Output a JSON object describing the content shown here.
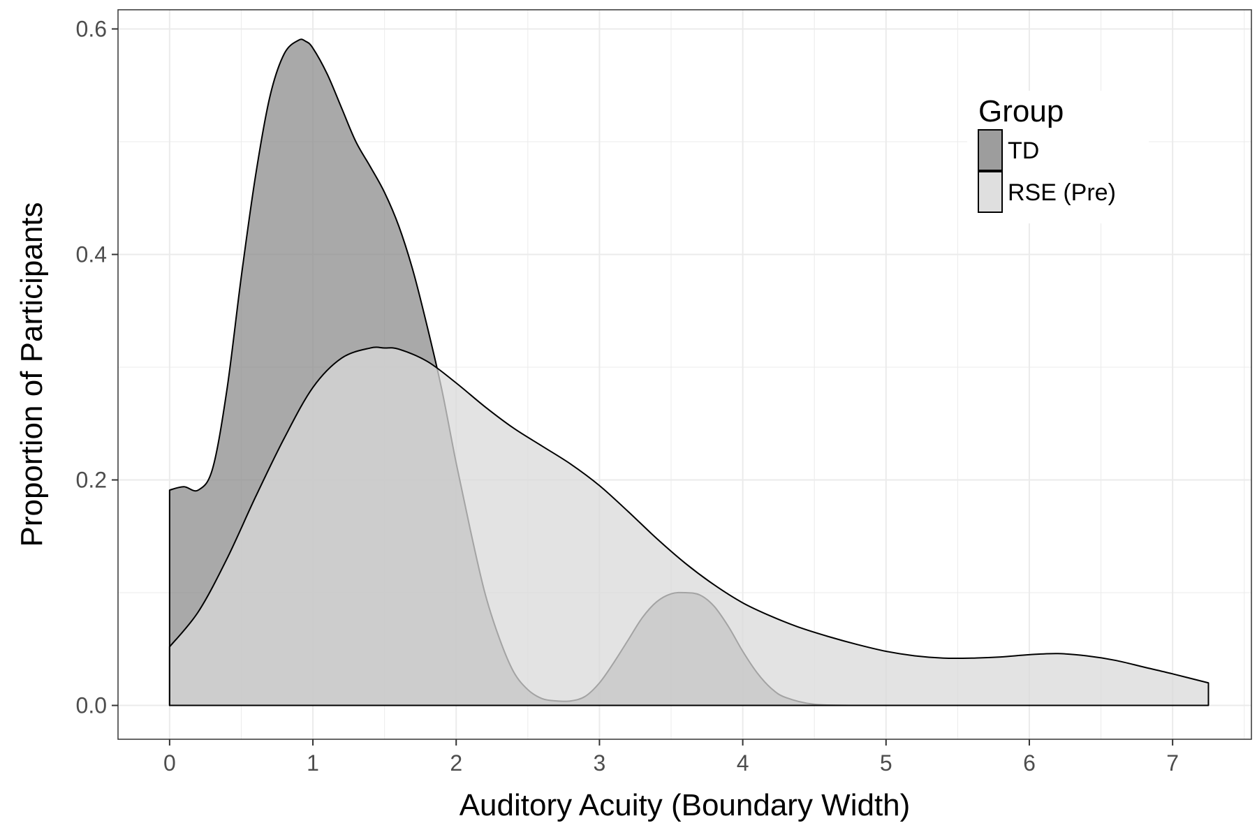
{
  "chart_data": {
    "type": "area",
    "xlabel": "Auditory Acuity (Boundary Width)",
    "ylabel": "Proportion of Participants",
    "xlim": [
      -0.36,
      7.55
    ],
    "ylim": [
      -0.03,
      0.617
    ],
    "x_ticks": [
      0,
      1,
      2,
      3,
      4,
      5,
      6,
      7
    ],
    "x_tick_labels": [
      "0",
      "1",
      "2",
      "3",
      "4",
      "5",
      "6",
      "7"
    ],
    "y_ticks": [
      0.0,
      0.2,
      0.4,
      0.6
    ],
    "y_tick_labels": [
      "0.0",
      "0.2",
      "0.4",
      "0.6"
    ],
    "grid": true,
    "legend": {
      "title": "Group",
      "position": "top-right"
    },
    "colors": {
      "td_fill": "#8c8c8c",
      "rse_fill": "#d9d9d9",
      "outline": "#000000",
      "grid": "#ebebeb",
      "panel_border": "#333333"
    },
    "series": [
      {
        "name": "TD",
        "x": [
          0,
          0.1,
          0.2,
          0.3,
          0.4,
          0.5,
          0.6,
          0.7,
          0.8,
          0.9,
          0.95,
          1.0,
          1.1,
          1.2,
          1.3,
          1.4,
          1.5,
          1.6,
          1.7,
          1.8,
          1.9,
          2.0,
          2.1,
          2.2,
          2.3,
          2.4,
          2.5,
          2.6,
          2.7,
          2.8,
          2.9,
          3.0,
          3.1,
          3.2,
          3.3,
          3.4,
          3.5,
          3.6,
          3.7,
          3.8,
          3.9,
          4.0,
          4.1,
          4.2,
          4.3,
          4.5,
          4.8
        ],
        "y": [
          0.191,
          0.194,
          0.191,
          0.21,
          0.28,
          0.38,
          0.47,
          0.54,
          0.578,
          0.59,
          0.589,
          0.583,
          0.56,
          0.53,
          0.5,
          0.478,
          0.455,
          0.425,
          0.385,
          0.335,
          0.28,
          0.215,
          0.155,
          0.1,
          0.06,
          0.03,
          0.014,
          0.006,
          0.004,
          0.004,
          0.008,
          0.02,
          0.038,
          0.058,
          0.078,
          0.092,
          0.099,
          0.1,
          0.098,
          0.088,
          0.07,
          0.048,
          0.029,
          0.015,
          0.007,
          0.001,
          0.0
        ]
      },
      {
        "name": "RSE (Pre)",
        "x": [
          0,
          0.2,
          0.4,
          0.6,
          0.8,
          1.0,
          1.2,
          1.4,
          1.5,
          1.6,
          1.8,
          2.0,
          2.2,
          2.4,
          2.6,
          2.8,
          3.0,
          3.2,
          3.4,
          3.6,
          3.8,
          4.0,
          4.2,
          4.4,
          4.6,
          4.8,
          5.0,
          5.2,
          5.4,
          5.6,
          5.8,
          6.0,
          6.2,
          6.4,
          6.6,
          6.8,
          7.0,
          7.25
        ],
        "y": [
          0.052,
          0.083,
          0.13,
          0.185,
          0.237,
          0.282,
          0.308,
          0.317,
          0.317,
          0.316,
          0.305,
          0.286,
          0.265,
          0.246,
          0.23,
          0.214,
          0.195,
          0.172,
          0.148,
          0.126,
          0.107,
          0.091,
          0.079,
          0.069,
          0.061,
          0.054,
          0.048,
          0.044,
          0.042,
          0.042,
          0.043,
          0.045,
          0.046,
          0.044,
          0.04,
          0.034,
          0.028,
          0.02
        ]
      }
    ]
  }
}
